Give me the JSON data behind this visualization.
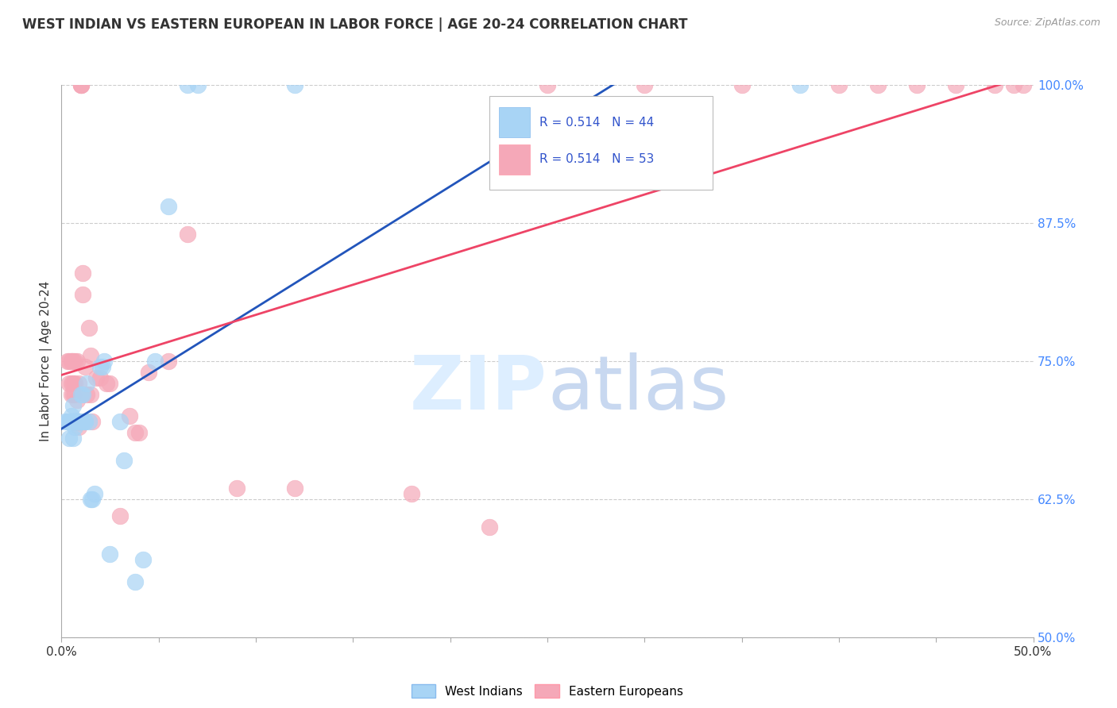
{
  "title": "WEST INDIAN VS EASTERN EUROPEAN IN LABOR FORCE | AGE 20-24 CORRELATION CHART",
  "source": "Source: ZipAtlas.com",
  "ylabel": "In Labor Force | Age 20-24",
  "xlim": [
    0.0,
    0.5
  ],
  "ylim": [
    0.5,
    1.0
  ],
  "xticks": [
    0.0,
    0.05,
    0.1,
    0.15,
    0.2,
    0.25,
    0.3,
    0.35,
    0.4,
    0.45,
    0.5
  ],
  "yticks_right": [
    0.5,
    0.625,
    0.75,
    0.875,
    1.0
  ],
  "yticklabels_right": [
    "50.0%",
    "62.5%",
    "75.0%",
    "87.5%",
    "100.0%"
  ],
  "blue_color": "#a8d4f5",
  "pink_color": "#f5a8b8",
  "blue_line_color": "#2255bb",
  "pink_line_color": "#ee4466",
  "background_color": "#ffffff",
  "grid_color": "#cccccc",
  "west_indian_x": [
    0.002,
    0.003,
    0.004,
    0.004,
    0.005,
    0.005,
    0.005,
    0.006,
    0.006,
    0.006,
    0.007,
    0.007,
    0.007,
    0.007,
    0.008,
    0.008,
    0.008,
    0.009,
    0.009,
    0.009,
    0.01,
    0.011,
    0.011,
    0.012,
    0.012,
    0.013,
    0.014,
    0.015,
    0.016,
    0.017,
    0.02,
    0.021,
    0.022,
    0.025,
    0.03,
    0.032,
    0.038,
    0.042,
    0.048,
    0.055,
    0.065,
    0.07,
    0.12,
    0.38
  ],
  "west_indian_y": [
    0.695,
    0.695,
    0.695,
    0.68,
    0.695,
    0.7,
    0.695,
    0.695,
    0.68,
    0.71,
    0.695,
    0.69,
    0.695,
    0.695,
    0.695,
    0.695,
    0.695,
    0.695,
    0.695,
    0.695,
    0.72,
    0.695,
    0.72,
    0.695,
    0.695,
    0.73,
    0.695,
    0.625,
    0.625,
    0.63,
    0.745,
    0.745,
    0.75,
    0.575,
    0.695,
    0.66,
    0.55,
    0.57,
    0.75,
    0.89,
    1.0,
    1.0,
    1.0,
    1.0
  ],
  "eastern_european_x": [
    0.003,
    0.004,
    0.004,
    0.005,
    0.005,
    0.005,
    0.005,
    0.006,
    0.006,
    0.006,
    0.007,
    0.007,
    0.007,
    0.008,
    0.008,
    0.009,
    0.009,
    0.01,
    0.01,
    0.01,
    0.011,
    0.011,
    0.012,
    0.013,
    0.014,
    0.015,
    0.015,
    0.016,
    0.018,
    0.02,
    0.023,
    0.025,
    0.03,
    0.035,
    0.038,
    0.04,
    0.045,
    0.055,
    0.065,
    0.09,
    0.12,
    0.18,
    0.22,
    0.25,
    0.3,
    0.35,
    0.4,
    0.42,
    0.44,
    0.46,
    0.48,
    0.49,
    0.495
  ],
  "eastern_european_y": [
    0.75,
    0.75,
    0.73,
    0.75,
    0.73,
    0.72,
    0.75,
    0.75,
    0.73,
    0.72,
    0.75,
    0.73,
    0.72,
    0.75,
    0.715,
    0.73,
    0.69,
    1.0,
    1.0,
    1.0,
    0.83,
    0.81,
    0.745,
    0.72,
    0.78,
    0.755,
    0.72,
    0.695,
    0.735,
    0.735,
    0.73,
    0.73,
    0.61,
    0.7,
    0.685,
    0.685,
    0.74,
    0.75,
    0.865,
    0.635,
    0.635,
    0.63,
    0.6,
    1.0,
    1.0,
    1.0,
    1.0,
    1.0,
    1.0,
    1.0,
    1.0,
    1.0,
    1.0
  ]
}
